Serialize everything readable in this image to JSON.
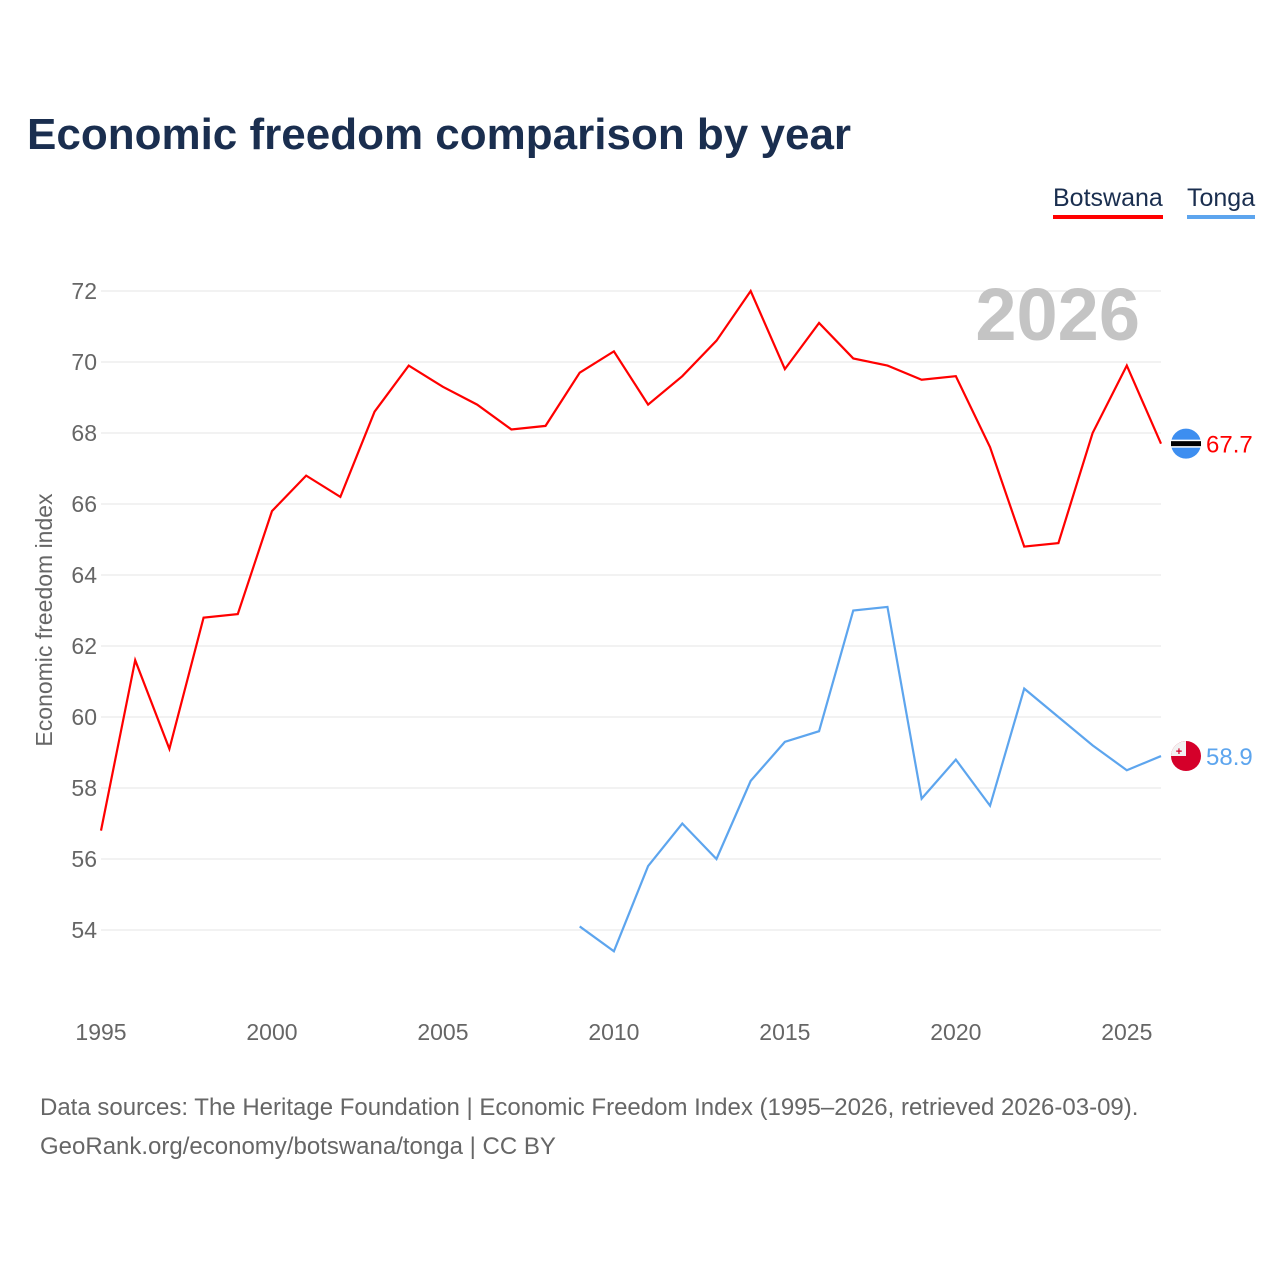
{
  "chart_data": {
    "type": "line",
    "title": "Economic freedom comparison by year",
    "ylabel": "Economic freedom index",
    "xlabel": "",
    "ylim": [
      52,
      73
    ],
    "xlim": [
      1995,
      2026
    ],
    "yticks": [
      54,
      56,
      58,
      60,
      62,
      64,
      66,
      68,
      70,
      72
    ],
    "xticks": [
      1995,
      2000,
      2005,
      2010,
      2015,
      2020,
      2025
    ],
    "grid": true,
    "legend_placement": "top-right",
    "year_label": "2026",
    "series": [
      {
        "name": "Botswana",
        "color": "#ff0000",
        "end_label": "67.7",
        "flag": "botswana-flag",
        "x": [
          1995,
          1996,
          1997,
          1998,
          1999,
          2000,
          2001,
          2002,
          2003,
          2004,
          2005,
          2006,
          2007,
          2008,
          2009,
          2010,
          2011,
          2012,
          2013,
          2014,
          2015,
          2016,
          2017,
          2018,
          2019,
          2020,
          2021,
          2022,
          2023,
          2024,
          2025,
          2026
        ],
        "values": [
          56.8,
          61.6,
          59.1,
          62.8,
          62.9,
          65.8,
          66.8,
          66.2,
          68.6,
          69.9,
          69.3,
          68.8,
          68.1,
          68.2,
          69.7,
          70.3,
          68.8,
          69.6,
          70.6,
          72.0,
          69.8,
          71.1,
          70.1,
          69.9,
          69.5,
          69.6,
          67.6,
          64.8,
          64.9,
          68.0,
          69.9,
          67.7
        ]
      },
      {
        "name": "Tonga",
        "color": "#5da5ee",
        "end_label": "58.9",
        "flag": "tonga-flag",
        "x": [
          2009,
          2010,
          2011,
          2012,
          2013,
          2014,
          2015,
          2016,
          2017,
          2018,
          2019,
          2020,
          2021,
          2022,
          2023,
          2024,
          2025,
          2026
        ],
        "values": [
          54.1,
          53.4,
          55.8,
          57.0,
          56.0,
          58.2,
          59.3,
          59.6,
          63.0,
          63.1,
          57.7,
          58.8,
          57.5,
          60.8,
          60.0,
          59.2,
          58.5,
          58.9
        ]
      }
    ]
  },
  "source": {
    "line1": "Data sources: The Heritage Foundation | Economic Freedom Index (1995–2026, retrieved 2026-03-09).",
    "line2": "GeoRank.org/economy/botswana/tonga | CC BY"
  }
}
